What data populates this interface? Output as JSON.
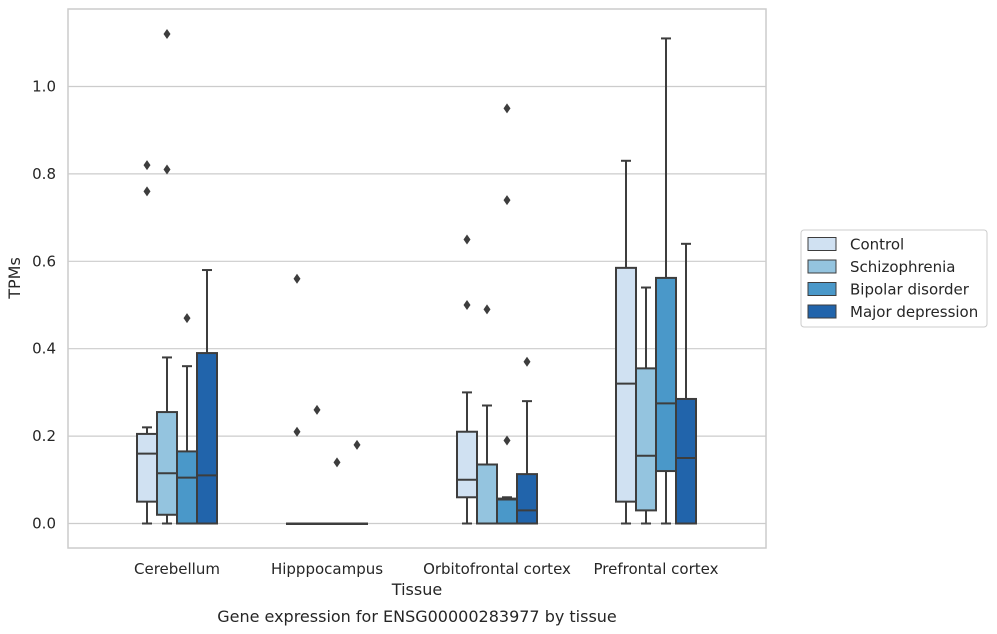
{
  "chart_data": {
    "type": "box",
    "caption": "Gene expression for ENSG00000283977 by tissue",
    "xlabel": "Tissue",
    "ylabel": "TPMs",
    "ylim": [
      -0.055,
      1.175
    ],
    "yticks": [
      "0.0",
      "0.2",
      "0.4",
      "0.6",
      "0.8",
      "1.0"
    ],
    "grid": "horizontal",
    "legend_position": "right",
    "categories": [
      "Cerebellum",
      "Hipppocampus",
      "Orbitofrontal cortex",
      "Prefrontal cortex"
    ],
    "series": [
      {
        "name": "Control",
        "color": "#d0e1f2",
        "boxes": [
          {
            "whislo": 0.0,
            "q1": 0.05,
            "med": 0.16,
            "q3": 0.205,
            "whishi": 0.22,
            "fliers": [
              0.76,
              0.82
            ]
          },
          {
            "whislo": 0.0,
            "q1": 0.0,
            "med": 0.0,
            "q3": 0.0,
            "whishi": 0.0,
            "fliers": [
              0.21,
              0.56
            ]
          },
          {
            "whislo": 0.0,
            "q1": 0.06,
            "med": 0.1,
            "q3": 0.21,
            "whishi": 0.3,
            "fliers": [
              0.5,
              0.65
            ]
          },
          {
            "whislo": 0.0,
            "q1": 0.05,
            "med": 0.32,
            "q3": 0.585,
            "whishi": 0.83,
            "fliers": []
          }
        ]
      },
      {
        "name": "Schizophrenia",
        "color": "#94c4df",
        "boxes": [
          {
            "whislo": 0.0,
            "q1": 0.02,
            "med": 0.115,
            "q3": 0.255,
            "whishi": 0.38,
            "fliers": [
              0.81,
              1.12
            ]
          },
          {
            "whislo": 0.0,
            "q1": 0.0,
            "med": 0.0,
            "q3": 0.0,
            "whishi": 0.0,
            "fliers": [
              0.26
            ]
          },
          {
            "whislo": 0.0,
            "q1": 0.0,
            "med": 0.0,
            "q3": 0.135,
            "whishi": 0.27,
            "fliers": [
              0.49
            ]
          },
          {
            "whislo": 0.0,
            "q1": 0.03,
            "med": 0.155,
            "q3": 0.355,
            "whishi": 0.54,
            "fliers": []
          }
        ]
      },
      {
        "name": "Bipolar disorder",
        "color": "#4a98c9",
        "boxes": [
          {
            "whislo": 0.0,
            "q1": 0.0,
            "med": 0.105,
            "q3": 0.165,
            "whishi": 0.36,
            "fliers": [
              0.47
            ]
          },
          {
            "whislo": 0.0,
            "q1": 0.0,
            "med": 0.0,
            "q3": 0.0,
            "whishi": 0.0,
            "fliers": [
              0.14
            ]
          },
          {
            "whislo": 0.0,
            "q1": 0.0,
            "med": 0.055,
            "q3": 0.057,
            "whishi": 0.06,
            "fliers": [
              0.19,
              0.74,
              0.95
            ]
          },
          {
            "whislo": 0.0,
            "q1": 0.12,
            "med": 0.275,
            "q3": 0.562,
            "whishi": 1.11,
            "fliers": []
          }
        ]
      },
      {
        "name": "Major depression",
        "color": "#2164ab",
        "boxes": [
          {
            "whislo": 0.0,
            "q1": 0.0,
            "med": 0.11,
            "q3": 0.39,
            "whishi": 0.58,
            "fliers": []
          },
          {
            "whislo": 0.0,
            "q1": 0.0,
            "med": 0.0,
            "q3": 0.0,
            "whishi": 0.0,
            "fliers": [
              0.18
            ]
          },
          {
            "whislo": 0.0,
            "q1": 0.0,
            "med": 0.03,
            "q3": 0.113,
            "whishi": 0.28,
            "fliers": [
              0.37
            ]
          },
          {
            "whislo": 0.0,
            "q1": 0.0,
            "med": 0.15,
            "q3": 0.285,
            "whishi": 0.64,
            "fliers": []
          }
        ]
      }
    ]
  }
}
